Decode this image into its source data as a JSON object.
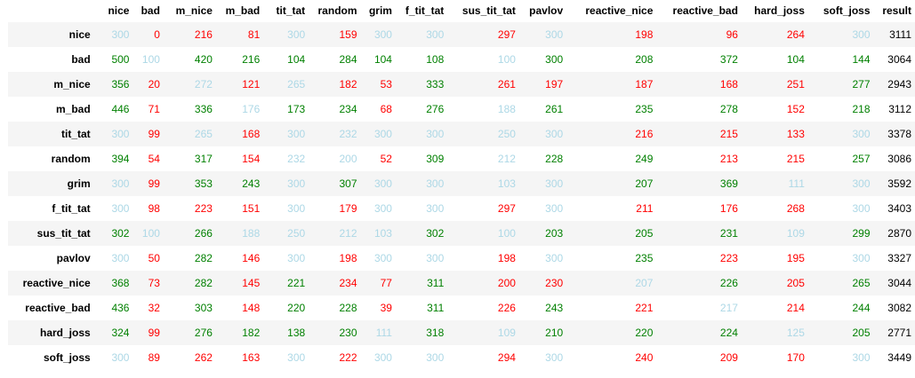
{
  "colors": {
    "green": "#008000",
    "red": "#ff0000",
    "light": "#add8e6",
    "black": "#000000",
    "row_stripe": "#f5f5f5"
  },
  "table": {
    "corner": "",
    "columns": [
      "nice",
      "bad",
      "m_nice",
      "m_bad",
      "tit_tat",
      "random",
      "grim",
      "f_tit_tat",
      "sus_tit_tat",
      "pavlov",
      "reactive_nice",
      "reactive_bad",
      "hard_joss",
      "soft_joss",
      "result"
    ],
    "rows": [
      {
        "label": "nice",
        "values": [
          "300",
          "0",
          "216",
          "81",
          "300",
          "159",
          "300",
          "300",
          "297",
          "300",
          "198",
          "96",
          "264",
          "300",
          "3111"
        ],
        "colors": [
          "light",
          "red",
          "red",
          "red",
          "light",
          "red",
          "light",
          "light",
          "red",
          "light",
          "red",
          "red",
          "red",
          "light",
          "black"
        ]
      },
      {
        "label": "bad",
        "values": [
          "500",
          "100",
          "420",
          "216",
          "104",
          "284",
          "104",
          "108",
          "100",
          "300",
          "208",
          "372",
          "104",
          "144",
          "3064"
        ],
        "colors": [
          "green",
          "light",
          "green",
          "green",
          "green",
          "green",
          "green",
          "green",
          "light",
          "green",
          "green",
          "green",
          "green",
          "green",
          "black"
        ]
      },
      {
        "label": "m_nice",
        "values": [
          "356",
          "20",
          "272",
          "121",
          "265",
          "182",
          "53",
          "333",
          "261",
          "197",
          "187",
          "168",
          "251",
          "277",
          "2943"
        ],
        "colors": [
          "green",
          "red",
          "light",
          "red",
          "light",
          "red",
          "red",
          "green",
          "red",
          "red",
          "red",
          "red",
          "red",
          "green",
          "black"
        ]
      },
      {
        "label": "m_bad",
        "values": [
          "446",
          "71",
          "336",
          "176",
          "173",
          "234",
          "68",
          "276",
          "188",
          "261",
          "235",
          "278",
          "152",
          "218",
          "3112"
        ],
        "colors": [
          "green",
          "red",
          "green",
          "light",
          "green",
          "green",
          "red",
          "green",
          "light",
          "green",
          "green",
          "green",
          "red",
          "green",
          "black"
        ]
      },
      {
        "label": "tit_tat",
        "values": [
          "300",
          "99",
          "265",
          "168",
          "300",
          "232",
          "300",
          "300",
          "250",
          "300",
          "216",
          "215",
          "133",
          "300",
          "3378"
        ],
        "colors": [
          "light",
          "red",
          "light",
          "red",
          "light",
          "light",
          "light",
          "light",
          "light",
          "light",
          "red",
          "red",
          "red",
          "light",
          "black"
        ]
      },
      {
        "label": "random",
        "values": [
          "394",
          "54",
          "317",
          "154",
          "232",
          "200",
          "52",
          "309",
          "212",
          "228",
          "249",
          "213",
          "215",
          "257",
          "3086"
        ],
        "colors": [
          "green",
          "red",
          "green",
          "red",
          "light",
          "light",
          "red",
          "green",
          "light",
          "green",
          "green",
          "red",
          "red",
          "green",
          "black"
        ]
      },
      {
        "label": "grim",
        "values": [
          "300",
          "99",
          "353",
          "243",
          "300",
          "307",
          "300",
          "300",
          "103",
          "300",
          "207",
          "369",
          "111",
          "300",
          "3592"
        ],
        "colors": [
          "light",
          "red",
          "green",
          "green",
          "light",
          "green",
          "light",
          "light",
          "light",
          "light",
          "green",
          "green",
          "light",
          "light",
          "black"
        ]
      },
      {
        "label": "f_tit_tat",
        "values": [
          "300",
          "98",
          "223",
          "151",
          "300",
          "179",
          "300",
          "300",
          "297",
          "300",
          "211",
          "176",
          "268",
          "300",
          "3403"
        ],
        "colors": [
          "light",
          "red",
          "red",
          "red",
          "light",
          "red",
          "light",
          "light",
          "red",
          "light",
          "red",
          "red",
          "red",
          "light",
          "black"
        ]
      },
      {
        "label": "sus_tit_tat",
        "values": [
          "302",
          "100",
          "266",
          "188",
          "250",
          "212",
          "103",
          "302",
          "100",
          "203",
          "205",
          "231",
          "109",
          "299",
          "2870"
        ],
        "colors": [
          "green",
          "light",
          "green",
          "light",
          "light",
          "light",
          "light",
          "green",
          "light",
          "green",
          "green",
          "green",
          "light",
          "green",
          "black"
        ]
      },
      {
        "label": "pavlov",
        "values": [
          "300",
          "50",
          "282",
          "146",
          "300",
          "198",
          "300",
          "300",
          "198",
          "300",
          "235",
          "223",
          "195",
          "300",
          "3327"
        ],
        "colors": [
          "light",
          "red",
          "green",
          "red",
          "light",
          "red",
          "light",
          "light",
          "red",
          "light",
          "green",
          "red",
          "red",
          "light",
          "black"
        ]
      },
      {
        "label": "reactive_nice",
        "values": [
          "368",
          "73",
          "282",
          "145",
          "221",
          "234",
          "77",
          "311",
          "200",
          "230",
          "207",
          "226",
          "205",
          "265",
          "3044"
        ],
        "colors": [
          "green",
          "red",
          "green",
          "red",
          "green",
          "red",
          "red",
          "green",
          "red",
          "red",
          "light",
          "green",
          "red",
          "green",
          "black"
        ]
      },
      {
        "label": "reactive_bad",
        "values": [
          "436",
          "32",
          "303",
          "148",
          "220",
          "228",
          "39",
          "311",
          "226",
          "243",
          "221",
          "217",
          "214",
          "244",
          "3082"
        ],
        "colors": [
          "green",
          "red",
          "green",
          "red",
          "green",
          "green",
          "red",
          "green",
          "red",
          "green",
          "red",
          "light",
          "red",
          "green",
          "black"
        ]
      },
      {
        "label": "hard_joss",
        "values": [
          "324",
          "99",
          "276",
          "182",
          "138",
          "230",
          "111",
          "318",
          "109",
          "210",
          "220",
          "224",
          "125",
          "205",
          "2771"
        ],
        "colors": [
          "green",
          "red",
          "green",
          "green",
          "green",
          "green",
          "light",
          "green",
          "light",
          "green",
          "green",
          "green",
          "light",
          "green",
          "black"
        ]
      },
      {
        "label": "soft_joss",
        "values": [
          "300",
          "89",
          "262",
          "163",
          "300",
          "222",
          "300",
          "300",
          "294",
          "300",
          "240",
          "209",
          "170",
          "300",
          "3449"
        ],
        "colors": [
          "light",
          "red",
          "red",
          "red",
          "light",
          "red",
          "light",
          "light",
          "red",
          "light",
          "red",
          "red",
          "red",
          "light",
          "black"
        ]
      }
    ]
  }
}
